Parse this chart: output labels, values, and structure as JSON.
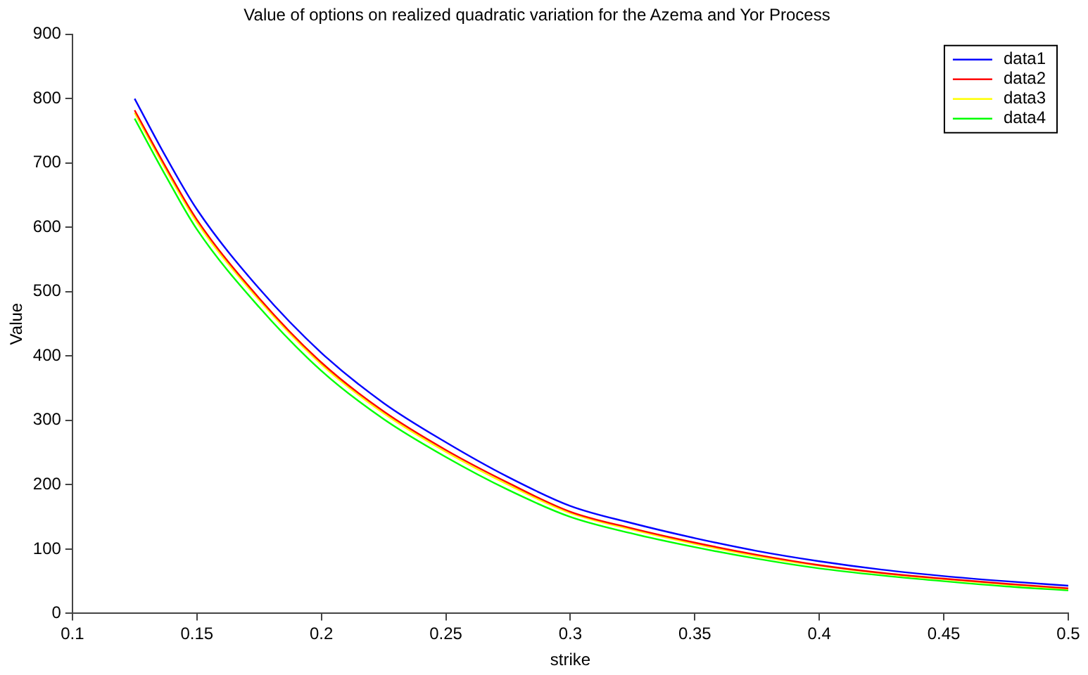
{
  "chart_data": {
    "type": "line",
    "title": "Value of options on realized quadratic variation for the Azema and Yor Process",
    "xlabel": "strike",
    "ylabel": "Value",
    "x": [
      0.125,
      0.1375,
      0.15,
      0.175,
      0.2,
      0.225,
      0.25,
      0.275,
      0.3,
      0.325,
      0.35,
      0.375,
      0.4,
      0.425,
      0.45,
      0.475,
      0.5
    ],
    "series": [
      {
        "name": "data1",
        "color": "#0000ff",
        "values": [
          800,
          710,
          628,
          505,
          405,
          327,
          266,
          212,
          167,
          140,
          117,
          97,
          81,
          68,
          58,
          50,
          43
        ]
      },
      {
        "name": "data2",
        "color": "#ff0000",
        "values": [
          782,
          694,
          612,
          490,
          390,
          314,
          254,
          203,
          158,
          132,
          110,
          91,
          75,
          63,
          54,
          46,
          39
        ]
      },
      {
        "name": "data3",
        "color": "#ffff00",
        "values": [
          778,
          690,
          608,
          487,
          387,
          311,
          251,
          200,
          156,
          130,
          108,
          89,
          74,
          62,
          53,
          45,
          38
        ]
      },
      {
        "name": "data4",
        "color": "#00ff00",
        "values": [
          769,
          680,
          597,
          476,
          377,
          302,
          243,
          192,
          150,
          124,
          103,
          85,
          70,
          59,
          50,
          42,
          36
        ]
      }
    ],
    "xlim": [
      0.1,
      0.5
    ],
    "xticks": [
      0.1,
      0.15,
      0.2,
      0.25,
      0.3,
      0.35,
      0.4,
      0.45,
      0.5
    ],
    "ylim": [
      0,
      900
    ],
    "yticks": [
      0,
      100,
      200,
      300,
      400,
      500,
      600,
      700,
      800,
      900
    ],
    "grid": false,
    "legend": "top right",
    "marker": "none",
    "line_style": "solid"
  }
}
